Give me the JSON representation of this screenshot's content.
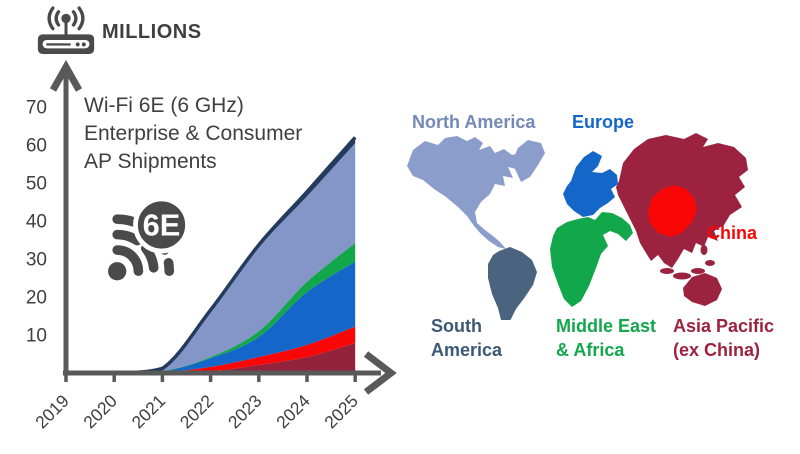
{
  "header": {
    "unit_label": "MILLIONS"
  },
  "chart": {
    "title_text": "Wi-Fi 6E (6 GHz)\nEnterprise & Consumer\nAP Shipments",
    "badge_label": "6E"
  },
  "chart_data": {
    "type": "area",
    "stacked": true,
    "title": "Wi-Fi 6E (6 GHz) Enterprise & Consumer AP Shipments",
    "unit": "MILLIONS",
    "categories": [
      "2019",
      "2020",
      "2021",
      "2022",
      "2023",
      "2024",
      "2025"
    ],
    "xlabel": "",
    "ylabel": "MILLIONS",
    "ylim": [
      0,
      70
    ],
    "ytick_step": 10,
    "grid": false,
    "legend_position": "map-right",
    "axis_color": "#595959",
    "text_color": "#3F3F3F",
    "top_line_color": "#243B5E",
    "series": [
      {
        "name": "Asia Pacific (ex China)",
        "color": "#93233B",
        "values": [
          0,
          0,
          0.1,
          0.5,
          2.1,
          4.2,
          7.9
        ]
      },
      {
        "name": "China",
        "color": "#F90606",
        "values": [
          0,
          0,
          0.1,
          1.1,
          2.1,
          3.2,
          4.3
        ]
      },
      {
        "name": "Europe",
        "color": "#1467C8",
        "values": [
          0,
          0,
          0.2,
          2.3,
          5.3,
          13.9,
          17.1
        ]
      },
      {
        "name": "Middle East & Africa",
        "color": "#12A74B",
        "values": [
          0,
          0,
          0.1,
          0.3,
          1.5,
          2.7,
          4.9
        ]
      },
      {
        "name": "North America",
        "color": "#8495C7",
        "values": [
          0,
          0,
          0.6,
          11.8,
          22.0,
          22.5,
          26.3
        ]
      },
      {
        "name": "South America",
        "color": "#243B5E",
        "values": [
          0,
          0,
          0.1,
          0.6,
          0.7,
          1.2,
          1.5
        ]
      }
    ]
  },
  "map": {
    "regions": [
      {
        "id": "north-america",
        "label": "North America",
        "color": "#8B9DCB",
        "label_color": "#7389B8"
      },
      {
        "id": "europe",
        "label": "Europe",
        "color": "#1467C8",
        "label_color": "#1467C8"
      },
      {
        "id": "south-america",
        "label": "South\nAmerica",
        "color": "#4A637F",
        "label_color": "#3C5878"
      },
      {
        "id": "middle-east-africa",
        "label": "Middle East\n& Africa",
        "color": "#12A74B",
        "label_color": "#12A74B"
      },
      {
        "id": "china",
        "label": "China",
        "color": "#F90606",
        "label_color": "#F90606"
      },
      {
        "id": "asia-pacific",
        "label": "Asia Pacific\n(ex China)",
        "color": "#9C2340",
        "label_color": "#9C2340"
      }
    ]
  }
}
